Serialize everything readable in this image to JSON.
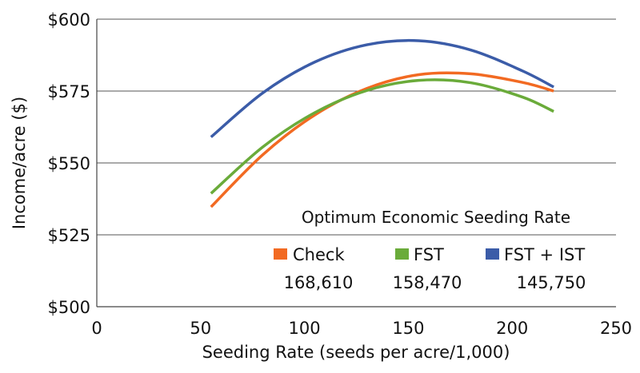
{
  "chart_data": {
    "type": "line",
    "title": "",
    "xlabel": "Seeding Rate (seeds per acre/1,000)",
    "ylabel": "Income/acre ($)",
    "xlim": [
      0,
      250
    ],
    "ylim": [
      500,
      600
    ],
    "x_ticks": [
      0,
      50,
      100,
      150,
      200,
      250
    ],
    "x_tick_labels": [
      "0",
      "50",
      "100",
      "150",
      "200",
      "250"
    ],
    "y_ticks": [
      500,
      525,
      550,
      575,
      600
    ],
    "y_tick_labels": [
      "$500",
      "$525",
      "$550",
      "$575",
      "$600"
    ],
    "grid": "horizontal",
    "x": [
      55,
      80,
      105,
      130,
      155,
      180,
      205,
      220
    ],
    "series": [
      {
        "name": "Check",
        "color": "#f26a22",
        "values": [
          534.7,
          552.9,
          566.7,
          575.9,
          580.7,
          581.0,
          578.0,
          575.0
        ]
      },
      {
        "name": "FST",
        "color": "#6aab3a",
        "values": [
          539.4,
          555.6,
          567.5,
          575.2,
          578.7,
          577.9,
          572.9,
          567.9
        ]
      },
      {
        "name": "FST + IST",
        "color": "#3b5ca8",
        "values": [
          559.0,
          574.4,
          585.1,
          591.1,
          592.5,
          589.3,
          582.0,
          576.4
        ]
      }
    ],
    "legend": {
      "title": "Optimum Economic Seeding Rate",
      "placement": "bottom-right inside",
      "entries": [
        {
          "label": "Check",
          "value": "168,610"
        },
        {
          "label": "FST",
          "value": "158,470"
        },
        {
          "label": "FST + IST",
          "value": "145,750"
        }
      ]
    }
  }
}
